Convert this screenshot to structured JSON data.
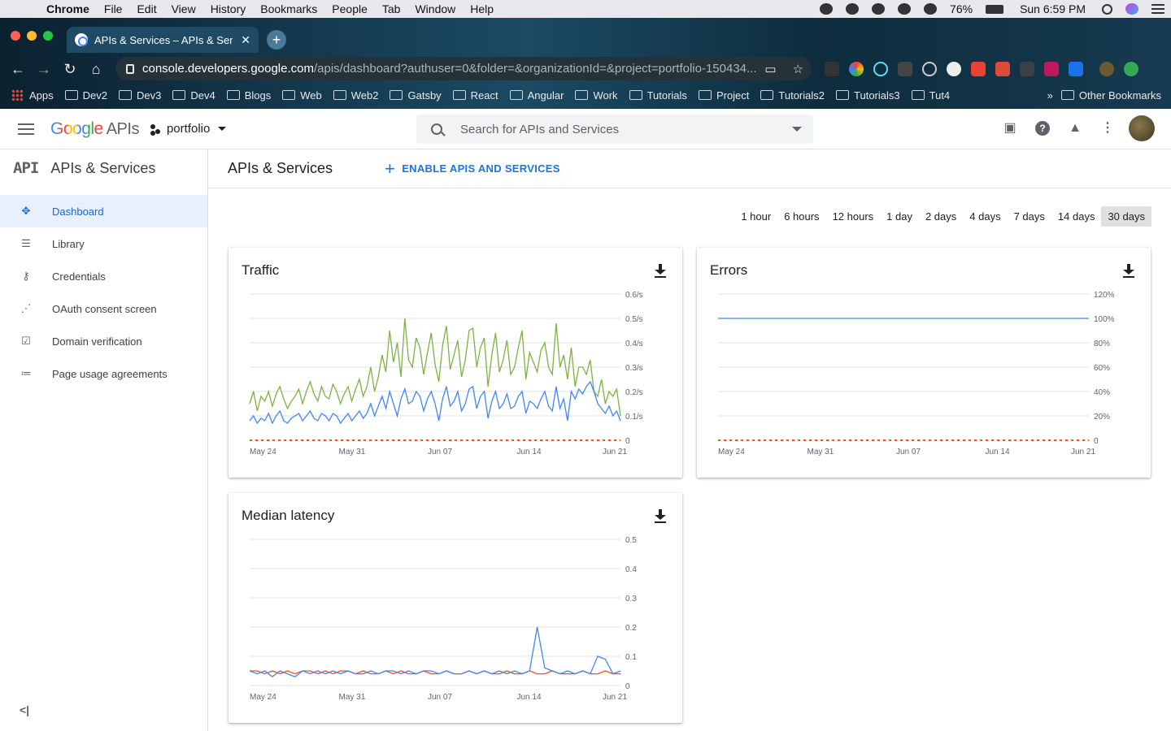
{
  "menubar": {
    "app": "Chrome",
    "items": [
      "File",
      "Edit",
      "View",
      "History",
      "Bookmarks",
      "People",
      "Tab",
      "Window",
      "Help"
    ],
    "battery": "76%",
    "clock": "Sun 6:59 PM"
  },
  "browser": {
    "tab_title": "APIs & Services – APIs & Servic",
    "url_domain": "console.developers.google.com",
    "url_path": "/apis/dashboard?authuser=0&folder=&organizationId=&project=portfolio-150434...",
    "bookmarks": [
      "Apps",
      "Dev2",
      "Dev3",
      "Dev4",
      "Blogs",
      "Web",
      "Web2",
      "Gatsby",
      "React",
      "Angular",
      "Work",
      "Tutorials",
      "Project",
      "Tutorials2",
      "Tutorials3",
      "Tut4"
    ],
    "overflow": "»",
    "other_bookmarks": "Other Bookmarks"
  },
  "header": {
    "logo_google": "Google",
    "logo_apis": "APIs",
    "project": "portfolio",
    "search_placeholder": "Search for APIs and Services"
  },
  "sidebar": {
    "title": "APIs & Services",
    "glyph": "API",
    "items": [
      {
        "label": "Dashboard",
        "icon": "dashboard-icon",
        "active": true
      },
      {
        "label": "Library",
        "icon": "library-icon"
      },
      {
        "label": "Credentials",
        "icon": "key-icon"
      },
      {
        "label": "OAuth consent screen",
        "icon": "oauth-icon"
      },
      {
        "label": "Domain verification",
        "icon": "checkbox-icon"
      },
      {
        "label": "Page usage agreements",
        "icon": "settings-list-icon"
      }
    ]
  },
  "main": {
    "title": "APIs & Services",
    "enable_button": "ENABLE APIS AND SERVICES",
    "ranges": [
      "1 hour",
      "6 hours",
      "12 hours",
      "1 day",
      "2 days",
      "4 days",
      "7 days",
      "14 days",
      "30 days"
    ],
    "selected_range": "30 days"
  },
  "chart_data": [
    {
      "type": "line",
      "title": "Traffic",
      "x_ticks": [
        "May 24",
        "May 31",
        "Jun 07",
        "Jun 14",
        "Jun 21"
      ],
      "y_ticks": [
        "0",
        "0.1/s",
        "0.2/s",
        "0.3/s",
        "0.4/s",
        "0.5/s",
        "0.6/s"
      ],
      "ylim": [
        0,
        0.6
      ],
      "colors": {
        "green": "#7cb342",
        "blue": "#4285f4",
        "orange": "#f4511e"
      },
      "series": [
        {
          "values": [
            0.15,
            0.2,
            0.12,
            0.18,
            0.16,
            0.2,
            0.14,
            0.19,
            0.22,
            0.17,
            0.13,
            0.16,
            0.18,
            0.21,
            0.15,
            0.2,
            0.24,
            0.19,
            0.16,
            0.22,
            0.18,
            0.17,
            0.23,
            0.2,
            0.15,
            0.19,
            0.22,
            0.16,
            0.21,
            0.25,
            0.18,
            0.22,
            0.3,
            0.2,
            0.26,
            0.35,
            0.28,
            0.45,
            0.32,
            0.4,
            0.26,
            0.5,
            0.33,
            0.3,
            0.42,
            0.38,
            0.27,
            0.36,
            0.44,
            0.31,
            0.24,
            0.39,
            0.47,
            0.29,
            0.35,
            0.41,
            0.26,
            0.33,
            0.45,
            0.46,
            0.3,
            0.38,
            0.42,
            0.22,
            0.35,
            0.44,
            0.28,
            0.33,
            0.41,
            0.27,
            0.3,
            0.38,
            0.45,
            0.25,
            0.36,
            0.32,
            0.28,
            0.37,
            0.4,
            0.3,
            0.27,
            0.48,
            0.3,
            0.35,
            0.25,
            0.38,
            0.22,
            0.3,
            0.3,
            0.27,
            0.33,
            0.2,
            0.18,
            0.25,
            0.15,
            0.2,
            0.18,
            0.21,
            0.1
          ]
        },
        {
          "values": [
            0.08,
            0.1,
            0.07,
            0.09,
            0.08,
            0.11,
            0.07,
            0.1,
            0.12,
            0.08,
            0.07,
            0.09,
            0.1,
            0.11,
            0.08,
            0.1,
            0.12,
            0.09,
            0.08,
            0.11,
            0.1,
            0.08,
            0.11,
            0.1,
            0.07,
            0.09,
            0.11,
            0.08,
            0.1,
            0.12,
            0.09,
            0.11,
            0.15,
            0.1,
            0.14,
            0.18,
            0.13,
            0.2,
            0.15,
            0.1,
            0.17,
            0.21,
            0.15,
            0.16,
            0.2,
            0.18,
            0.12,
            0.17,
            0.2,
            0.15,
            0.08,
            0.17,
            0.22,
            0.14,
            0.16,
            0.2,
            0.12,
            0.15,
            0.21,
            0.22,
            0.13,
            0.18,
            0.2,
            0.09,
            0.16,
            0.2,
            0.13,
            0.15,
            0.19,
            0.13,
            0.14,
            0.18,
            0.2,
            0.11,
            0.16,
            0.15,
            0.13,
            0.17,
            0.2,
            0.14,
            0.12,
            0.22,
            0.13,
            0.17,
            0.08,
            0.2,
            0.17,
            0.21,
            0.19,
            0.22,
            0.24,
            0.2,
            0.15,
            0.13,
            0.11,
            0.14,
            0.1,
            0.12,
            0.08
          ]
        },
        {
          "values": [
            0,
            0,
            0,
            0,
            0,
            0,
            0,
            0,
            0,
            0,
            0,
            0,
            0,
            0,
            0,
            0,
            0,
            0,
            0,
            0,
            0,
            0,
            0,
            0,
            0,
            0,
            0,
            0,
            0,
            0,
            0,
            0,
            0,
            0,
            0,
            0,
            0,
            0,
            0,
            0,
            0,
            0,
            0,
            0,
            0,
            0,
            0,
            0,
            0,
            0,
            0,
            0,
            0,
            0,
            0,
            0,
            0,
            0,
            0,
            0,
            0,
            0,
            0,
            0,
            0,
            0,
            0,
            0,
            0,
            0,
            0,
            0,
            0,
            0,
            0,
            0,
            0,
            0,
            0,
            0,
            0,
            0,
            0,
            0,
            0,
            0,
            0,
            0,
            0,
            0,
            0,
            0,
            0,
            0,
            0,
            0,
            0,
            0,
            0
          ]
        }
      ]
    },
    {
      "type": "line",
      "title": "Errors",
      "x_ticks": [
        "May 24",
        "May 31",
        "Jun 07",
        "Jun 14",
        "Jun 21"
      ],
      "y_ticks": [
        "0",
        "20%",
        "40%",
        "60%",
        "80%",
        "100%",
        "120%"
      ],
      "ylim": [
        0,
        120
      ],
      "colors": {
        "blue": "#4285f4",
        "orange": "#f4511e",
        "green": "#7cb342"
      },
      "series": [
        {
          "values": [
            100,
            100,
            100,
            100,
            100,
            100,
            100,
            100,
            100,
            100,
            100,
            100,
            100,
            100,
            100,
            100,
            100,
            100,
            100,
            100
          ]
        },
        {
          "values": [
            0,
            0,
            0,
            0,
            0,
            0,
            0,
            0,
            0,
            0,
            0,
            0,
            0,
            0,
            0,
            0,
            0,
            0,
            0,
            0
          ]
        }
      ]
    },
    {
      "type": "line",
      "title": "Median latency",
      "x_ticks": [
        "May 24",
        "May 31",
        "Jun 07",
        "Jun 14",
        "Jun 21"
      ],
      "y_ticks": [
        "0",
        "0.1",
        "0.2",
        "0.3",
        "0.4",
        "0.5"
      ],
      "ylim": [
        0,
        0.5
      ],
      "colors": {
        "orange": "#f4511e",
        "blue": "#4285f4"
      },
      "series": [
        {
          "values": [
            0.05,
            0.05,
            0.04,
            0.05,
            0.04,
            0.05,
            0.04,
            0.05,
            0.05,
            0.04,
            0.05,
            0.04,
            0.05,
            0.05,
            0.04,
            0.05,
            0.04,
            0.04,
            0.05,
            0.04,
            0.05,
            0.04,
            0.04,
            0.05,
            0.04,
            0.04,
            0.05,
            0.04,
            0.04,
            0.05,
            0.04,
            0.05,
            0.04,
            0.04,
            0.05,
            0.04,
            0.04,
            0.05,
            0.04,
            0.04,
            0.05,
            0.04,
            0.04,
            0.04,
            0.05,
            0.04,
            0.04,
            0.05,
            0.04,
            0.04
          ]
        },
        {
          "values": [
            0.05,
            0.04,
            0.05,
            0.03,
            0.05,
            0.04,
            0.03,
            0.05,
            0.04,
            0.05,
            0.04,
            0.05,
            0.04,
            0.05,
            0.04,
            0.04,
            0.05,
            0.04,
            0.05,
            0.05,
            0.04,
            0.05,
            0.04,
            0.05,
            0.05,
            0.04,
            0.05,
            0.04,
            0.04,
            0.05,
            0.04,
            0.05,
            0.04,
            0.05,
            0.04,
            0.05,
            0.04,
            0.05,
            0.2,
            0.06,
            0.05,
            0.04,
            0.05,
            0.04,
            0.05,
            0.04,
            0.1,
            0.09,
            0.04,
            0.05
          ]
        }
      ]
    }
  ]
}
